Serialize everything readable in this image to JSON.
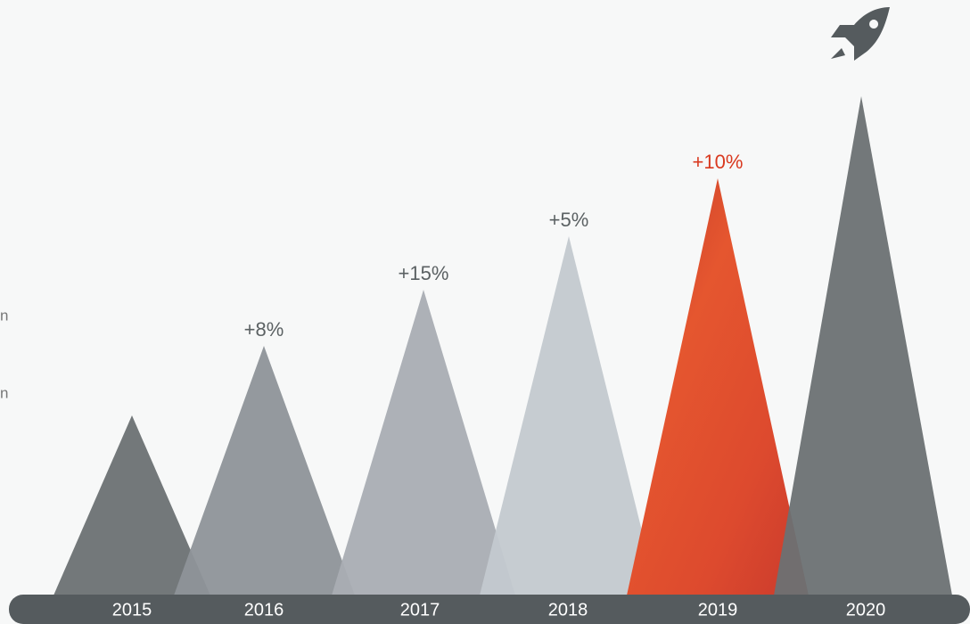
{
  "side_text": [
    "n",
    "n"
  ],
  "columns": [
    {
      "year": "2015"
    },
    {
      "year": "2016",
      "label": "+8%"
    },
    {
      "year": "2017",
      "label": "+15%"
    },
    {
      "year": "2018",
      "label": "+5%"
    },
    {
      "year": "2019",
      "label": "+10%"
    },
    {
      "year": "2020"
    }
  ]
}
